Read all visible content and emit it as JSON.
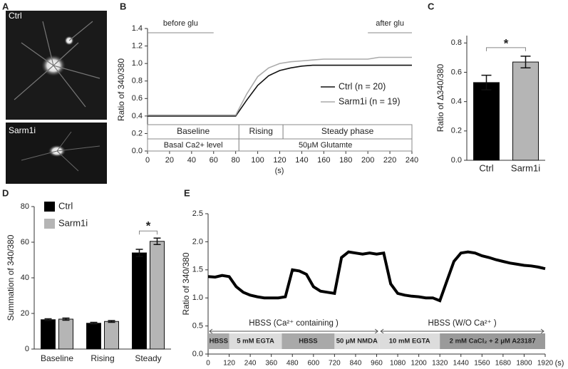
{
  "chart_data": [
    {
      "type": "image",
      "panel": "A",
      "labels": [
        "Ctrl",
        "Sarm1i"
      ]
    },
    {
      "type": "line",
      "panel": "B",
      "ylabel": "Ratio of 340/380",
      "xlabel": "(s)",
      "x": [
        0,
        10,
        20,
        30,
        40,
        50,
        60,
        70,
        80,
        90,
        100,
        110,
        120,
        130,
        140,
        150,
        160,
        170,
        180,
        190,
        200,
        210,
        220,
        230,
        240
      ],
      "series": [
        {
          "name": "Ctrl  (n = 20)",
          "color": "#111111",
          "values": [
            0.4,
            0.4,
            0.4,
            0.4,
            0.4,
            0.4,
            0.4,
            0.4,
            0.4,
            0.58,
            0.75,
            0.86,
            0.92,
            0.95,
            0.97,
            0.98,
            0.98,
            0.98,
            0.98,
            0.98,
            0.98,
            0.98,
            0.98,
            0.98,
            0.98
          ]
        },
        {
          "name": "Sarm1i (n = 19)",
          "color": "#aaaaaa",
          "values": [
            0.41,
            0.41,
            0.41,
            0.41,
            0.41,
            0.41,
            0.41,
            0.41,
            0.41,
            0.65,
            0.85,
            0.95,
            1.0,
            1.02,
            1.03,
            1.04,
            1.05,
            1.05,
            1.05,
            1.05,
            1.05,
            1.07,
            1.07,
            1.07,
            1.07
          ]
        }
      ],
      "xlim": [
        0,
        240
      ],
      "xticks": [
        0,
        20,
        40,
        60,
        80,
        100,
        120,
        140,
        160,
        180,
        200,
        220,
        240
      ],
      "ylim": [
        0,
        1.4
      ],
      "yticks": [
        {
          "value": 0,
          "label": "0.0"
        },
        {
          "value": 0.2,
          "label": "0.2"
        },
        {
          "value": 0.4,
          "label": "0.4"
        },
        {
          "value": 0.6,
          "label": "0.6"
        },
        {
          "value": 0.8,
          "label": "0.8"
        },
        {
          "value": 1,
          "label": "1.0"
        },
        {
          "value": 1.2,
          "label": "1.2"
        },
        {
          "value": 1.4,
          "label": "1.4"
        }
      ],
      "annotations": [
        {
          "text": "before glu",
          "range": [
            0,
            60
          ]
        },
        {
          "text": "after glu",
          "range": [
            200,
            240
          ]
        }
      ],
      "phases": [
        {
          "label": "Baseline",
          "range": [
            0,
            83
          ]
        },
        {
          "label": "Rising",
          "range": [
            83,
            123
          ]
        },
        {
          "label": "Steady phase",
          "range": [
            123,
            240
          ]
        }
      ],
      "conditions": [
        {
          "label": "Basal Ca2+ level",
          "range": [
            0,
            83
          ]
        },
        {
          "label": "50μM Glutamte",
          "range": [
            83,
            240
          ]
        }
      ]
    },
    {
      "type": "bar",
      "panel": "C",
      "ylabel": "Ratio of ∆340/380",
      "categories": [
        "Ctrl",
        "Sarm1i"
      ],
      "values": [
        0.53,
        0.67
      ],
      "errors": [
        0.05,
        0.04
      ],
      "colors": [
        "#000000",
        "#b5b5b5"
      ],
      "ylim": [
        0,
        0.85
      ],
      "yticks": [
        {
          "value": 0,
          "label": "0.0"
        },
        0.2,
        0.4,
        0.6,
        0.8
      ],
      "significance": "*"
    },
    {
      "type": "grouped_bar",
      "panel": "D",
      "ylabel": "Summation of 340/380",
      "categories": [
        "Baseline",
        "Rising",
        "Steady"
      ],
      "series": [
        {
          "name": "Ctrl",
          "color": "#000000",
          "values": [
            16.5,
            14.5,
            54
          ],
          "errors": [
            0.5,
            0.5,
            2
          ]
        },
        {
          "name": "Sarm1i",
          "color": "#b5b5b5",
          "values": [
            16.8,
            15.5,
            60.5
          ],
          "errors": [
            0.6,
            0.5,
            1.8
          ]
        }
      ],
      "ylim": [
        0,
        80
      ],
      "yticks": [
        0,
        20,
        40,
        60,
        80
      ],
      "significance": "*",
      "significance_category": "Steady"
    },
    {
      "type": "line",
      "panel": "E",
      "ylabel": "Ratio of 340/380",
      "xlabel": "(s)",
      "x": [
        0,
        40,
        80,
        120,
        160,
        200,
        240,
        280,
        320,
        360,
        400,
        440,
        480,
        520,
        560,
        600,
        640,
        680,
        720,
        760,
        800,
        840,
        880,
        920,
        960,
        1000,
        1040,
        1080,
        1120,
        1160,
        1200,
        1240,
        1280,
        1320,
        1360,
        1400,
        1440,
        1480,
        1520,
        1560,
        1600,
        1640,
        1680,
        1720,
        1760,
        1800,
        1840,
        1880,
        1920
      ],
      "series": [
        {
          "name": null,
          "color": "#000000",
          "values": [
            1.38,
            1.37,
            1.4,
            1.38,
            1.2,
            1.1,
            1.05,
            1.02,
            1.0,
            1.0,
            1.0,
            1.02,
            1.5,
            1.48,
            1.42,
            1.2,
            1.12,
            1.1,
            1.08,
            1.72,
            1.82,
            1.8,
            1.78,
            1.8,
            1.78,
            1.8,
            1.25,
            1.08,
            1.05,
            1.03,
            1.02,
            1.0,
            1.0,
            0.95,
            1.3,
            1.65,
            1.8,
            1.82,
            1.8,
            1.75,
            1.72,
            1.68,
            1.65,
            1.62,
            1.6,
            1.58,
            1.57,
            1.55,
            1.52
          ]
        }
      ],
      "xlim": [
        0,
        1920
      ],
      "xticks": [
        0,
        120,
        240,
        360,
        480,
        600,
        720,
        840,
        960,
        1080,
        1200,
        1320,
        1440,
        1560,
        1680,
        1800,
        1920
      ],
      "ylim": [
        0,
        2.5
      ],
      "yticks": [
        {
          "value": 0,
          "label": "0.0"
        },
        0.5,
        {
          "value": 1,
          "label": "1.0"
        },
        1.5,
        {
          "value": 2,
          "label": "2.0"
        },
        2.5
      ],
      "conditions": [
        {
          "label": "HBSS (Ca²⁺ containing )",
          "range": [
            0,
            975
          ]
        },
        {
          "label": "HBSS (W/O Ca²⁺ )",
          "range": [
            975,
            1920
          ]
        }
      ],
      "treatments": [
        {
          "label": "HBSS",
          "range": [
            0,
            120
          ],
          "color": "#a9a9a9"
        },
        {
          "label": "5 mM EGTA",
          "range": [
            120,
            420
          ],
          "color": "#dcdcdc"
        },
        {
          "label": "HBSS",
          "range": [
            420,
            720
          ],
          "color": "#a9a9a9"
        },
        {
          "label": "50 μM NMDA",
          "range": [
            720,
            975
          ],
          "color": "#dcdcdc"
        },
        {
          "label": "10 mM EGTA",
          "range": [
            975,
            1320
          ],
          "color": "#dcdcdc"
        },
        {
          "label": "2 mM CaCl₂  +  2 μM A23187",
          "range": [
            1320,
            1920
          ],
          "color": "#9a9a9a"
        }
      ]
    }
  ]
}
